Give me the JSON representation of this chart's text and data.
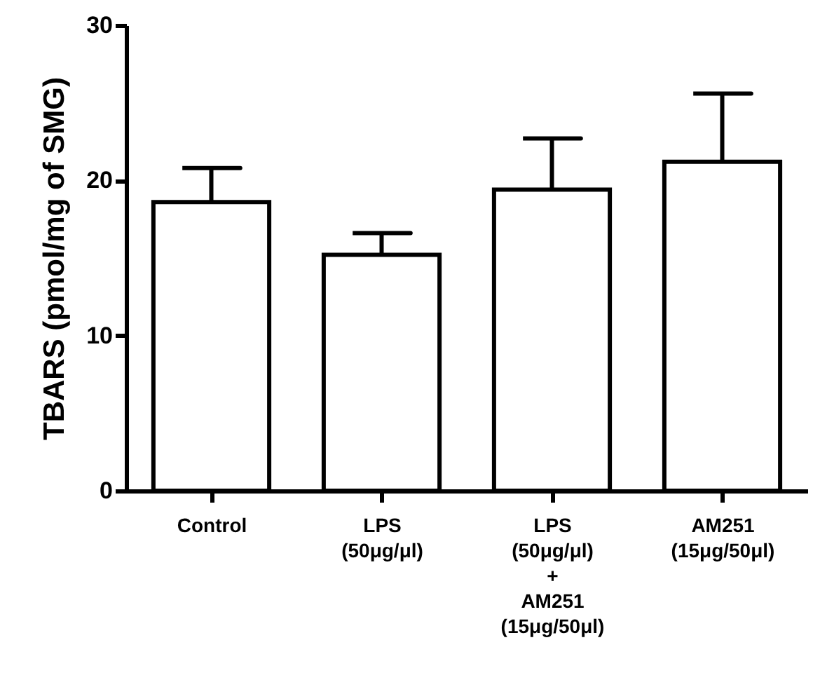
{
  "chart_data": {
    "type": "bar",
    "ylabel": "TBARS (pmol/mg of SMG)",
    "categories": [
      "Control",
      "LPS\n(50μg/μl)",
      "LPS\n(50μg/μl)\n+\nAM251\n(15μg/50μl)",
      "AM251\n(15μg/50μl)"
    ],
    "values": [
      18.6,
      15.2,
      19.4,
      21.2
    ],
    "errors": [
      [
        18.6,
        20.8
      ],
      [
        15.2,
        16.6
      ],
      [
        19.4,
        22.7
      ],
      [
        21.2,
        25.6
      ]
    ],
    "color": "#ffffff",
    "ylim": [
      0,
      30
    ],
    "yticks": [
      0,
      10,
      20,
      30
    ],
    "grid": false
  }
}
